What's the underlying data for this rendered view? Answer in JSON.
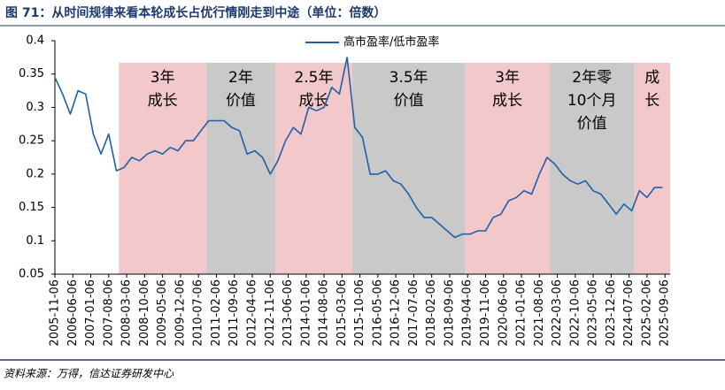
{
  "chart_data": {
    "type": "line",
    "title": "图 71：从时间规律来看本轮成长占优行情刚走到中途（单位：倍数）",
    "source": "资料来源：万得，信达证券研发中心",
    "xlim": [
      "2005-11-06",
      "2025-11-06"
    ],
    "xticks": [
      "2005-11-06",
      "2006-06-06",
      "2007-01-06",
      "2007-08-06",
      "2008-03-06",
      "2008-10-06",
      "2009-05-06",
      "2009-12-06",
      "2010-07-06",
      "2011-02-06",
      "2011-09-06",
      "2012-04-06",
      "2012-11-06",
      "2013-06-06",
      "2014-01-06",
      "2014-08-06",
      "2015-03-06",
      "2015-10-06",
      "2016-05-06",
      "2016-12-06",
      "2017-07-06",
      "2018-02-06",
      "2018-09-06",
      "2019-04-06",
      "2019-11-06",
      "2020-06-06",
      "2021-01-06",
      "2021-08-06",
      "2022-03-06",
      "2022-10-06",
      "2023-05-06",
      "2023-12-06",
      "2024-07-06",
      "2025-02-06",
      "2025-09-06"
    ],
    "ylim": [
      0.05,
      0.4
    ],
    "yticks": [
      0.05,
      0.1,
      0.15,
      0.2,
      0.25,
      0.3,
      0.35,
      0.4
    ],
    "regions": [
      {
        "start": "2007-12-06",
        "end": "2010-10-06",
        "color": "#f2c8cb",
        "label": [
          "3年",
          "成长"
        ]
      },
      {
        "start": "2010-10-06",
        "end": "2013-01-06",
        "color": "#c9c9c9",
        "label": [
          "2年",
          "价值"
        ]
      },
      {
        "start": "2013-01-06",
        "end": "2015-07-06",
        "color": "#f2c8cb",
        "label": [
          "2.5年",
          "成长"
        ]
      },
      {
        "start": "2015-07-06",
        "end": "2019-03-06",
        "color": "#c9c9c9",
        "label": [
          "3.5年",
          "价值"
        ]
      },
      {
        "start": "2019-03-06",
        "end": "2021-12-06",
        "color": "#f2c8cb",
        "label": [
          "3年",
          "成长"
        ]
      },
      {
        "start": "2021-12-06",
        "end": "2024-09-06",
        "color": "#c9c9c9",
        "label": [
          "2年零",
          "10个月",
          "价值"
        ]
      },
      {
        "start": "2024-09-06",
        "end": "2025-11-06",
        "color": "#f2c8cb",
        "label": [
          "成",
          "长"
        ]
      }
    ],
    "x": [
      "2005-11-06",
      "2006-02-06",
      "2006-05-06",
      "2006-08-06",
      "2006-11-06",
      "2007-02-06",
      "2007-05-06",
      "2007-08-06",
      "2007-11-06",
      "2008-02-06",
      "2008-05-06",
      "2008-08-06",
      "2008-11-06",
      "2009-02-06",
      "2009-05-06",
      "2009-08-06",
      "2009-11-06",
      "2010-02-06",
      "2010-05-06",
      "2010-08-06",
      "2010-11-06",
      "2011-02-06",
      "2011-05-06",
      "2011-08-06",
      "2011-11-06",
      "2012-02-06",
      "2012-05-06",
      "2012-08-06",
      "2012-11-06",
      "2013-02-06",
      "2013-05-06",
      "2013-08-06",
      "2013-11-06",
      "2014-02-06",
      "2014-05-06",
      "2014-08-06",
      "2014-11-06",
      "2015-02-06",
      "2015-05-06",
      "2015-08-06",
      "2015-11-06",
      "2016-02-06",
      "2016-05-06",
      "2016-08-06",
      "2016-11-06",
      "2017-02-06",
      "2017-05-06",
      "2017-08-06",
      "2017-11-06",
      "2018-02-06",
      "2018-05-06",
      "2018-08-06",
      "2018-11-06",
      "2019-02-06",
      "2019-05-06",
      "2019-08-06",
      "2019-11-06",
      "2020-02-06",
      "2020-05-06",
      "2020-08-06",
      "2020-11-06",
      "2021-02-06",
      "2021-05-06",
      "2021-08-06",
      "2021-11-06",
      "2022-02-06",
      "2022-05-06",
      "2022-08-06",
      "2022-11-06",
      "2023-02-06",
      "2023-05-06",
      "2023-08-06",
      "2023-11-06",
      "2024-02-06",
      "2024-05-06",
      "2024-08-06",
      "2024-11-06",
      "2025-02-06",
      "2025-05-06",
      "2025-08-06"
    ],
    "series": [
      {
        "name": "高市盈率/低市盈率",
        "color": "#1f5fa8",
        "values": [
          0.345,
          0.32,
          0.29,
          0.325,
          0.32,
          0.26,
          0.23,
          0.26,
          0.205,
          0.21,
          0.225,
          0.22,
          0.23,
          0.235,
          0.23,
          0.24,
          0.235,
          0.25,
          0.25,
          0.265,
          0.28,
          0.28,
          0.28,
          0.27,
          0.265,
          0.23,
          0.235,
          0.225,
          0.2,
          0.22,
          0.25,
          0.27,
          0.26,
          0.3,
          0.295,
          0.3,
          0.33,
          0.32,
          0.375,
          0.27,
          0.255,
          0.2,
          0.2,
          0.205,
          0.19,
          0.185,
          0.17,
          0.15,
          0.135,
          0.135,
          0.125,
          0.115,
          0.105,
          0.11,
          0.11,
          0.115,
          0.115,
          0.135,
          0.14,
          0.16,
          0.165,
          0.175,
          0.17,
          0.2,
          0.225,
          0.215,
          0.2,
          0.19,
          0.185,
          0.19,
          0.175,
          0.17,
          0.155,
          0.14,
          0.155,
          0.145,
          0.175,
          0.165,
          0.18,
          0.18
        ]
      }
    ]
  }
}
